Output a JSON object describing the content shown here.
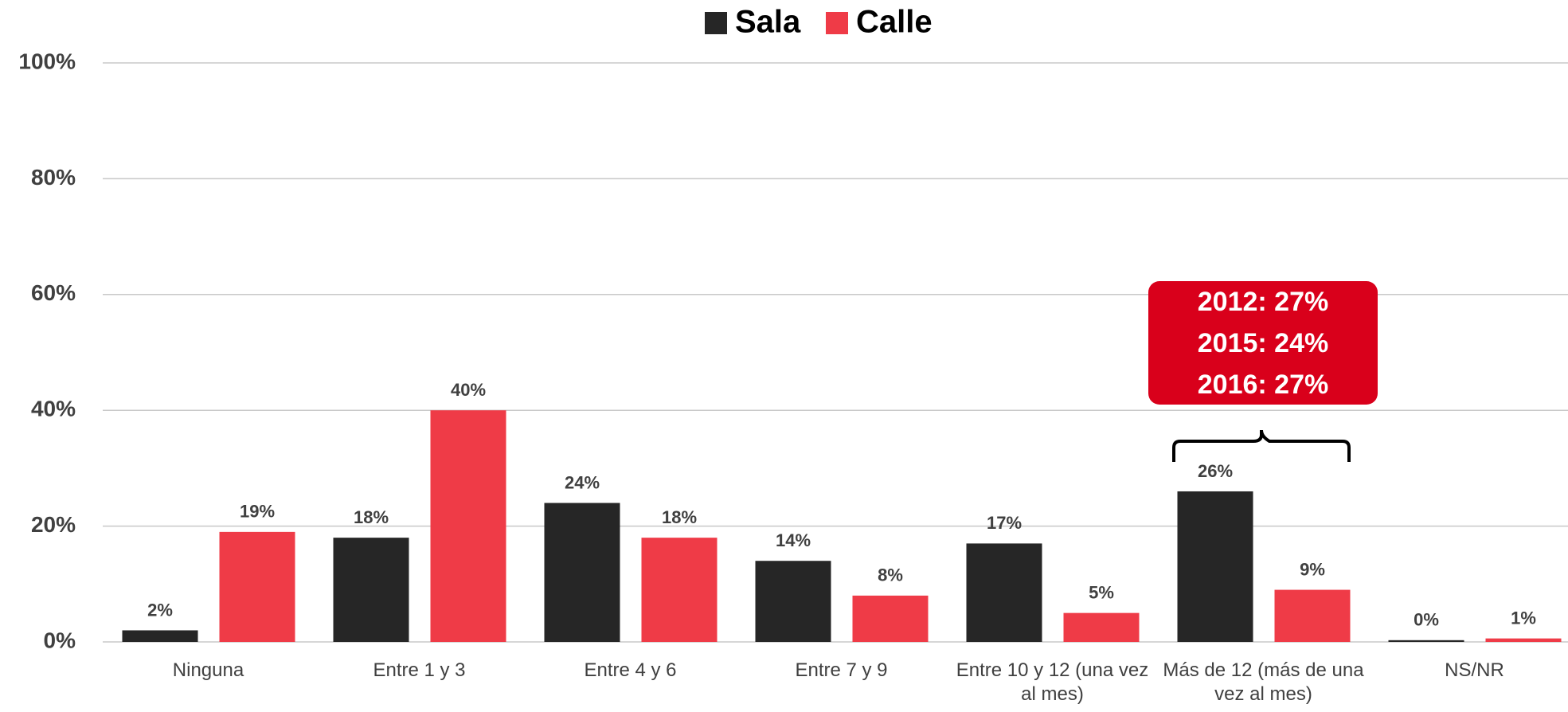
{
  "chart_data": {
    "type": "bar",
    "categories": [
      "Ninguna",
      "Entre 1 y 3",
      "Entre 4 y 6",
      "Entre 7 y 9",
      "Entre 10 y 12 (una vez al mes)",
      "Más de 12 (más de una vez al mes)",
      "NS/NR"
    ],
    "series": [
      {
        "name": "Sala",
        "color": "#262626",
        "values": [
          2,
          18,
          24,
          14,
          17,
          26,
          0.3
        ],
        "value_labels": [
          "2%",
          "18%",
          "24%",
          "14%",
          "17%",
          "26%",
          "0%"
        ]
      },
      {
        "name": "Calle",
        "color": "#ef3b47",
        "values": [
          19,
          40,
          18,
          8,
          5,
          9,
          0.6
        ],
        "value_labels": [
          "19%",
          "40%",
          "18%",
          "8%",
          "5%",
          "9%",
          "1%"
        ]
      }
    ],
    "ylim": [
      0,
      100
    ],
    "yticks": [
      {
        "value": 0,
        "label": "0%"
      },
      {
        "value": 20,
        "label": "20%"
      },
      {
        "value": 40,
        "label": "40%"
      },
      {
        "value": 60,
        "label": "60%"
      },
      {
        "value": 80,
        "label": "80%"
      },
      {
        "value": 100,
        "label": "100%"
      }
    ],
    "grid": true,
    "legend": "top",
    "annotation": {
      "lines": [
        "2012: 27%",
        "2015: 24%",
        "2016: 27%"
      ],
      "color": "#d9001b"
    }
  }
}
